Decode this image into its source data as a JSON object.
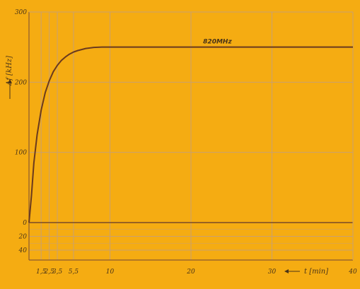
{
  "chart_data": {
    "type": "line",
    "title": "",
    "xlabel": "t [min]",
    "ylabel": "Δf [kHz]",
    "xlim": [
      0,
      40
    ],
    "ylim": [
      -40,
      300
    ],
    "grid": true,
    "x_ticks": [
      {
        "value": 1.5,
        "label": "1,5"
      },
      {
        "value": 2.5,
        "label": "2,5"
      },
      {
        "value": 3.5,
        "label": "3,5"
      },
      {
        "value": 5.5,
        "label": "5,5"
      },
      {
        "value": 10,
        "label": "10"
      },
      {
        "value": 20,
        "label": "20"
      },
      {
        "value": 30,
        "label": "30"
      },
      {
        "value": 40,
        "label": "40"
      }
    ],
    "y_ticks": [
      {
        "value": 300,
        "label": "300"
      },
      {
        "value": 200,
        "label": "200"
      },
      {
        "value": 100,
        "label": "100"
      },
      {
        "value": 0,
        "label": "0"
      },
      {
        "value": -20,
        "label": "20"
      },
      {
        "value": -40,
        "label": "40"
      }
    ],
    "series": [
      {
        "name": "820MHz",
        "x": [
          0,
          0.3,
          0.6,
          1,
          1.5,
          2,
          2.5,
          3,
          3.5,
          4,
          4.5,
          5,
          5.5,
          6,
          7,
          8,
          9,
          10,
          11,
          12,
          15,
          20,
          25,
          30,
          35,
          40
        ],
        "y": [
          0,
          38,
          85,
          125,
          160,
          185,
          202,
          215,
          224,
          231,
          236,
          240,
          243,
          245,
          248,
          249.5,
          250,
          250,
          250,
          250,
          250,
          250,
          250,
          250,
          250,
          250
        ]
      }
    ],
    "annotations": [
      {
        "text": "820MHz",
        "x": 21.5,
        "y": 255
      }
    ]
  }
}
